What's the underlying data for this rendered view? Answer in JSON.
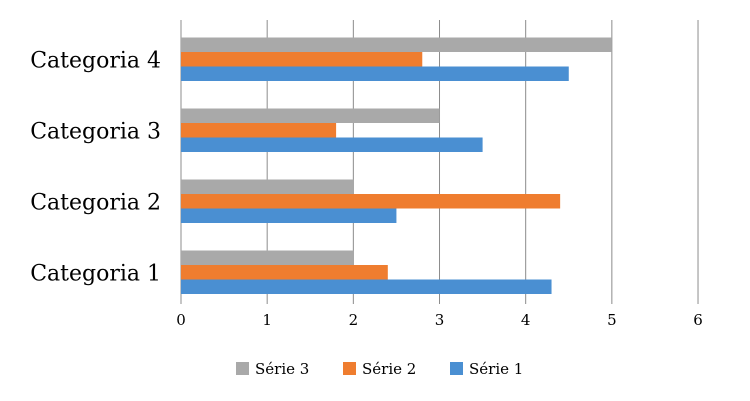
{
  "chart_data": {
    "type": "bar",
    "orientation": "horizontal",
    "categories": [
      "Categoria 1",
      "Categoria 2",
      "Categoria 3",
      "Categoria 4"
    ],
    "series": [
      {
        "name": "Série 1",
        "color": "#4a8fd2",
        "values": [
          4.3,
          2.5,
          3.5,
          4.5
        ]
      },
      {
        "name": "Série 2",
        "color": "#ef7d2f",
        "values": [
          2.4,
          4.4,
          1.8,
          2.8
        ]
      },
      {
        "name": "Série 3",
        "color": "#a9a9a9",
        "values": [
          2,
          2,
          3,
          5
        ]
      }
    ],
    "x_ticks": [
      "0",
      "1",
      "2",
      "3",
      "4",
      "5",
      "6"
    ],
    "xlim": [
      0,
      6
    ],
    "grid": "vertical",
    "legend_position": "bottom",
    "legend_order": [
      "Série 3",
      "Série 2",
      "Série 1"
    ]
  }
}
